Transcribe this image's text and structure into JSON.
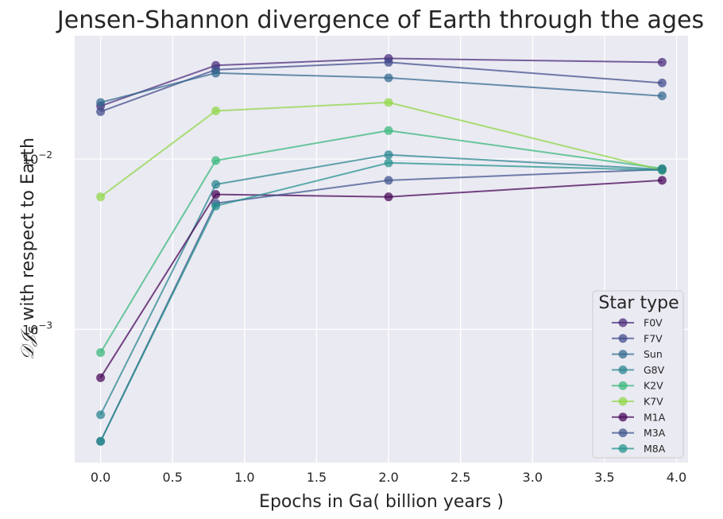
{
  "chart_data": {
    "type": "line",
    "title": "Jensen-Shannon divergence of Earth through the ages",
    "xlabel": "Epochs in Ga( billion years )",
    "ylabel_math": "𝒟𝒥",
    "ylabel_sub": "S",
    "ylabel_text": " with respect to Earth",
    "yscale": "log",
    "xlim": [
      -0.18,
      4.08
    ],
    "ylim": [
      0.000165,
      0.053
    ],
    "grid": true,
    "x_ticks": [
      "0.0",
      "0.5",
      "1.0",
      "1.5",
      "2.0",
      "2.5",
      "3.0",
      "3.5",
      "4.0"
    ],
    "y_ticks": [
      {
        "value": 0.01,
        "base": "10",
        "exp": "−2"
      },
      {
        "value": 0.001,
        "base": "10",
        "exp": "−3"
      }
    ],
    "legend": {
      "title": "Star type",
      "position": "lower right"
    },
    "x": [
      0.0,
      0.8,
      2.0,
      3.9
    ],
    "series": [
      {
        "name": "F0V",
        "color": "#482878",
        "values": [
          0.0205,
          0.0355,
          0.039,
          0.037
        ]
      },
      {
        "name": "F7V",
        "color": "#3e4989",
        "values": [
          0.019,
          0.0335,
          0.037,
          0.028
        ]
      },
      {
        "name": "Sun",
        "color": "#31688e",
        "values": [
          0.0215,
          0.032,
          0.03,
          0.0235
        ]
      },
      {
        "name": "G8V",
        "color": "#26828e",
        "values": [
          0.000315,
          0.0071,
          0.0106,
          0.0087
        ]
      },
      {
        "name": "K2V",
        "color": "#35b779",
        "values": [
          0.00073,
          0.0098,
          0.0147,
          0.0088
        ]
      },
      {
        "name": "K7V",
        "color": "#8fd744",
        "values": [
          0.006,
          0.0192,
          0.0215,
          0.0086
        ]
      },
      {
        "name": "M1A",
        "color": "#440154",
        "values": [
          0.00052,
          0.0062,
          0.006,
          0.0075
        ]
      },
      {
        "name": "M3A",
        "color": "#3b528b",
        "values": [
          0.00022,
          0.0055,
          0.0075,
          0.0087
        ]
      },
      {
        "name": "M8A",
        "color": "#21918c",
        "values": [
          0.00022,
          0.0053,
          0.0095,
          0.0086
        ]
      }
    ]
  }
}
